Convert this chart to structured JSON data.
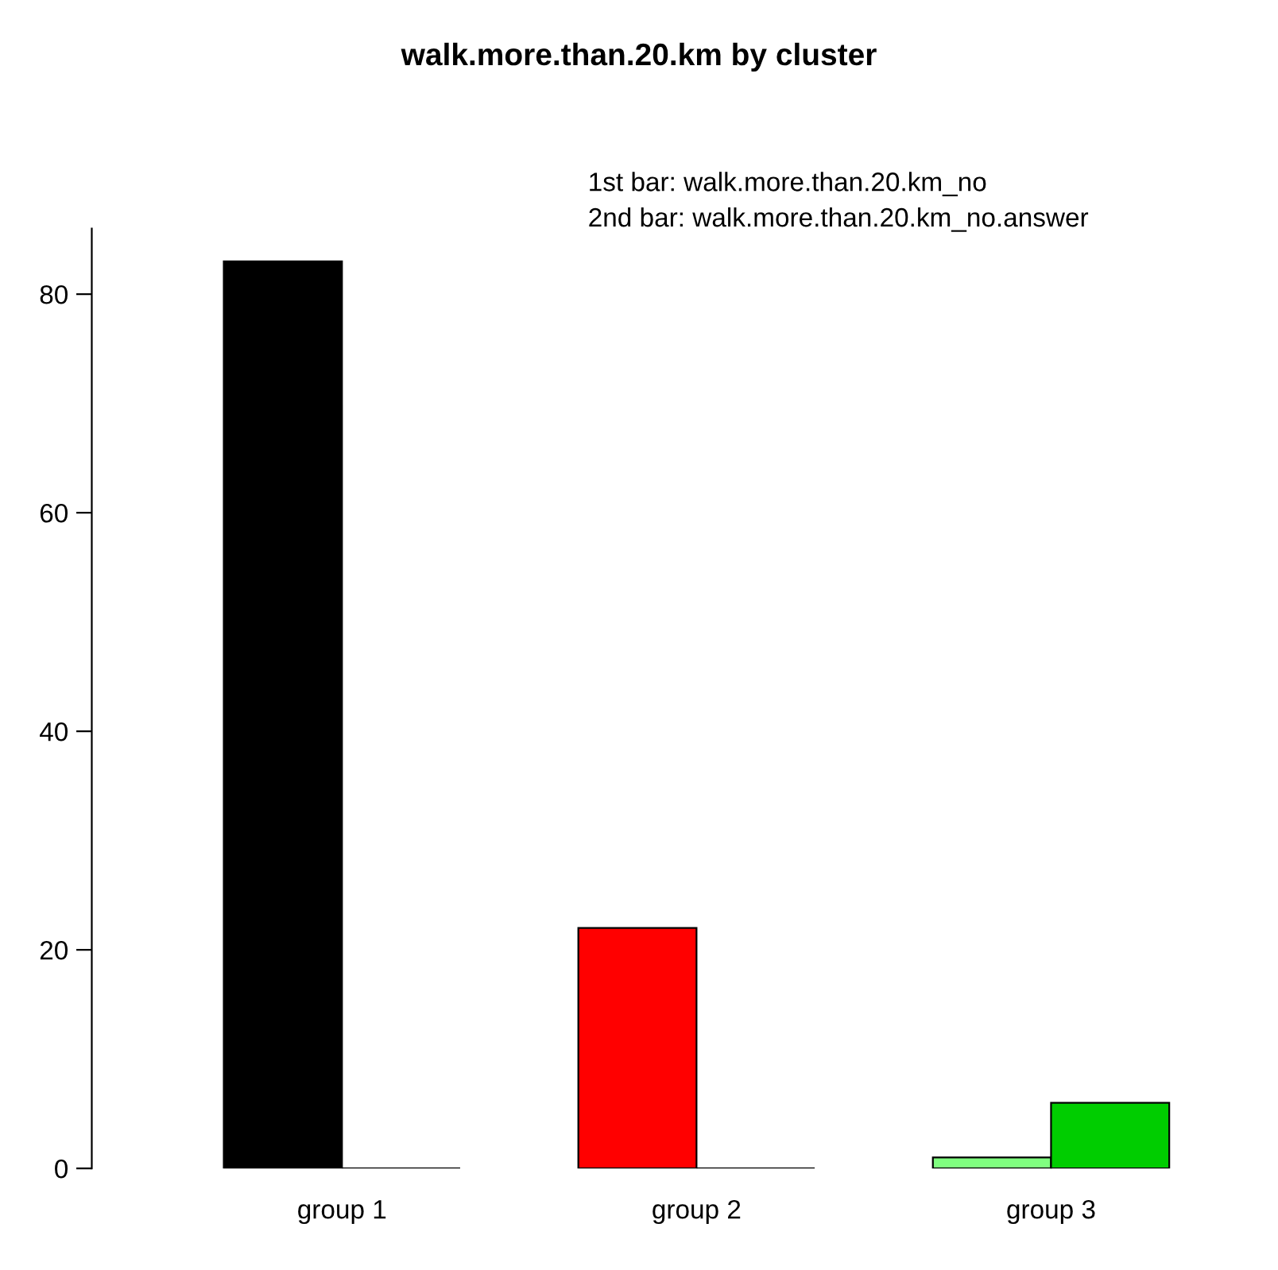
{
  "chart_data": {
    "type": "bar",
    "title": "walk.more.than.20.km by cluster",
    "categories": [
      "group 1",
      "group 2",
      "group 3"
    ],
    "series": [
      {
        "colors": [
          "#000000",
          "#ff0000",
          "#80ff80"
        ],
        "values": [
          83,
          22,
          1
        ]
      },
      {
        "colors": [
          "#000000",
          "#000000",
          "#00cd00"
        ],
        "values": [
          0,
          0,
          6
        ]
      }
    ],
    "annotations": [
      "1st bar: walk.more.than.20.km_no",
      "2nd bar: walk.more.than.20.km_no.answer"
    ],
    "ylim": [
      0,
      86
    ],
    "yticks": [
      0,
      20,
      40,
      60,
      80
    ],
    "grid": false,
    "legend": false
  }
}
